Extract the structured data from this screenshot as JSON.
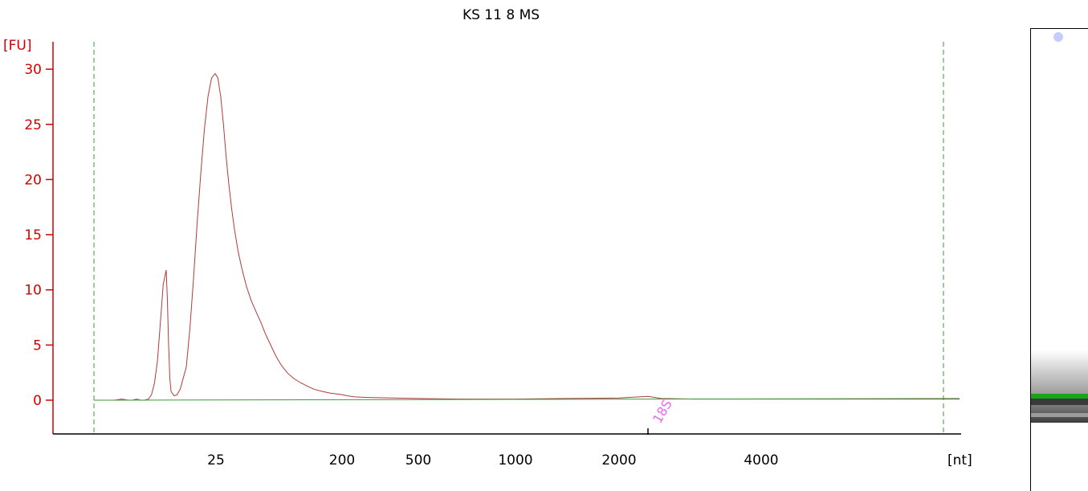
{
  "chart_data": {
    "type": "line",
    "title": "KS 11 8 MS",
    "ylabel": "[FU]",
    "xlabel": "[nt]",
    "ylim": [
      -3,
      32
    ],
    "yticks": [
      0,
      5,
      10,
      15,
      20,
      25,
      30
    ],
    "ytick_labels": [
      "0",
      "5",
      "10",
      "15",
      "20",
      "25",
      "30"
    ],
    "xtick_labels": [
      "25",
      "200",
      "500",
      "1000",
      "2000",
      "4000"
    ],
    "grid": false,
    "series": [
      {
        "color": "#b23a3a",
        "points": [
          [
            27,
            0.0
          ],
          [
            28,
            0.0
          ],
          [
            29,
            0.1
          ],
          [
            30,
            0.0
          ],
          [
            31,
            0.0
          ],
          [
            32,
            0.1
          ],
          [
            33,
            0.0
          ],
          [
            34,
            0.0
          ],
          [
            35,
            0.1
          ],
          [
            36,
            0.5
          ],
          [
            37,
            1.5
          ],
          [
            38,
            3.5
          ],
          [
            39,
            7.0
          ],
          [
            40,
            10.5
          ],
          [
            41,
            11.8
          ],
          [
            42,
            9.0
          ],
          [
            43,
            5.0
          ],
          [
            44,
            2.0
          ],
          [
            45,
            0.8
          ],
          [
            46,
            0.4
          ],
          [
            47,
            0.5
          ],
          [
            48,
            1.0
          ],
          [
            50,
            3.0
          ],
          [
            52,
            6.5
          ],
          [
            54,
            11.0
          ],
          [
            56,
            16.0
          ],
          [
            58,
            20.5
          ],
          [
            60,
            24.5
          ],
          [
            62,
            27.5
          ],
          [
            64,
            29.2
          ],
          [
            66,
            29.6
          ],
          [
            68,
            29.2
          ],
          [
            70,
            27.5
          ],
          [
            72,
            25.0
          ],
          [
            74,
            22.0
          ],
          [
            76,
            19.5
          ],
          [
            78,
            17.3
          ],
          [
            80,
            15.5
          ],
          [
            83,
            13.5
          ],
          [
            86,
            12.0
          ],
          [
            90,
            10.3
          ],
          [
            94,
            9.0
          ],
          [
            98,
            8.0
          ],
          [
            103,
            7.0
          ],
          [
            108,
            6.0
          ],
          [
            114,
            5.0
          ],
          [
            120,
            4.0
          ],
          [
            126,
            3.2
          ],
          [
            133,
            2.5
          ],
          [
            140,
            2.0
          ],
          [
            148,
            1.6
          ],
          [
            156,
            1.3
          ],
          [
            165,
            1.0
          ],
          [
            175,
            0.8
          ],
          [
            185,
            0.65
          ],
          [
            200,
            0.5
          ],
          [
            220,
            0.4
          ],
          [
            250,
            0.3
          ],
          [
            300,
            0.25
          ],
          [
            400,
            0.2
          ],
          [
            500,
            0.15
          ],
          [
            700,
            0.1
          ],
          [
            1000,
            0.1
          ],
          [
            1500,
            0.15
          ],
          [
            2000,
            0.2
          ],
          [
            2300,
            0.35
          ],
          [
            2500,
            0.15
          ],
          [
            3000,
            0.1
          ],
          [
            4000,
            0.1
          ],
          [
            5000,
            0.1
          ],
          [
            6000,
            0.1
          ],
          [
            7000,
            0.1
          ]
        ]
      },
      {
        "color": "#3a9a3a",
        "points": [
          [
            23,
            0.0
          ],
          [
            7000,
            0.15
          ]
        ]
      }
    ],
    "vertical_lines": [
      {
        "position": "left",
        "color": "#3a9a3a",
        "style": "dashed"
      },
      {
        "position": "right",
        "color": "#3a9a3a",
        "style": "dashed"
      }
    ],
    "marker": {
      "label": "18S",
      "color": "#ee66ee"
    }
  }
}
